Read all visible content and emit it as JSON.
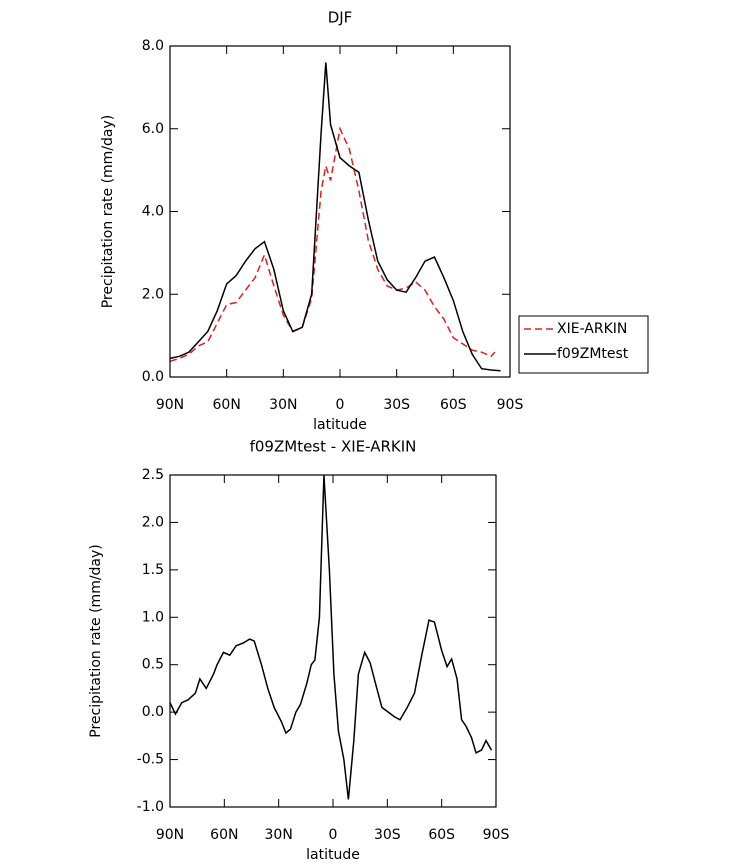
{
  "chart_data": [
    {
      "type": "line",
      "title": "DJF",
      "xlabel": "latitude",
      "ylabel": "Precipitation rate (mm/day)",
      "xlim": [
        90,
        -90
      ],
      "ylim": [
        0,
        8
      ],
      "xticks": [
        {
          "value": 90,
          "label": "90N"
        },
        {
          "value": 60,
          "label": "60N"
        },
        {
          "value": 30,
          "label": "30N"
        },
        0,
        {
          "value": -30,
          "label": "30S"
        },
        {
          "value": -60,
          "label": "60S"
        },
        {
          "value": -90,
          "label": "90S"
        }
      ],
      "yticks": [
        {
          "value": 0,
          "label": "0.0"
        },
        {
          "value": 2,
          "label": "2.0"
        },
        {
          "value": 4,
          "label": "4.0"
        },
        {
          "value": 6,
          "label": "6.0"
        },
        {
          "value": 8,
          "label": "8.0"
        }
      ],
      "legend": "right",
      "series": [
        {
          "name": "XIE-ARKIN",
          "color": "#e02020",
          "line_style": "dashed",
          "x": [
            90,
            85,
            80,
            75,
            70,
            65,
            60,
            55,
            50,
            45,
            40,
            35,
            30,
            25,
            20,
            15,
            10,
            7.5,
            5,
            0,
            -5,
            -10,
            -15,
            -20,
            -25,
            -30,
            -35,
            -40,
            -45,
            -50,
            -55,
            -60,
            -65,
            -70,
            -75,
            -80,
            -82
          ],
          "values": [
            0.38,
            0.45,
            0.55,
            0.75,
            0.85,
            1.3,
            1.75,
            1.8,
            2.1,
            2.4,
            2.95,
            2.2,
            1.5,
            1.1,
            1.2,
            1.9,
            4.5,
            5.1,
            4.75,
            6.0,
            5.5,
            4.5,
            3.3,
            2.6,
            2.2,
            2.1,
            2.15,
            2.3,
            2.1,
            1.7,
            1.4,
            0.95,
            0.8,
            0.65,
            0.6,
            0.5,
            0.6
          ]
        },
        {
          "name": "f09ZMtest",
          "color": "#000000",
          "line_style": "solid",
          "x": [
            90,
            85,
            80,
            75,
            70,
            65,
            60,
            55,
            50,
            45,
            40,
            35,
            30,
            25,
            20,
            15,
            10,
            7.5,
            5,
            0,
            -5,
            -10,
            -15,
            -20,
            -25,
            -30,
            -35,
            -40,
            -45,
            -50,
            -55,
            -60,
            -65,
            -70,
            -75,
            -80,
            -85
          ],
          "values": [
            0.45,
            0.5,
            0.6,
            0.85,
            1.1,
            1.6,
            2.25,
            2.45,
            2.8,
            3.1,
            3.27,
            2.6,
            1.6,
            1.1,
            1.2,
            2.0,
            5.9,
            7.6,
            6.1,
            5.3,
            5.1,
            4.95,
            3.8,
            2.8,
            2.35,
            2.1,
            2.05,
            2.4,
            2.8,
            2.9,
            2.4,
            1.85,
            1.1,
            0.55,
            0.2,
            0.17,
            0.15
          ]
        }
      ]
    },
    {
      "type": "line",
      "title": "f09ZMtest - XIE-ARKIN",
      "xlabel": "latitude",
      "ylabel": "Precipitation rate (mm/day)",
      "xlim": [
        90,
        -90
      ],
      "ylim": [
        -1,
        2.5
      ],
      "xticks": [
        {
          "value": 90,
          "label": "90N"
        },
        {
          "value": 60,
          "label": "60N"
        },
        {
          "value": 30,
          "label": "30N"
        },
        0,
        {
          "value": -30,
          "label": "30S"
        },
        {
          "value": -60,
          "label": "60S"
        },
        {
          "value": -90,
          "label": "90S"
        }
      ],
      "yticks": [
        {
          "value": -1,
          "label": "-1.0"
        },
        {
          "value": -0.5,
          "label": "-0.5"
        },
        {
          "value": 0,
          "label": "0.0"
        },
        0.5,
        {
          "value": 1,
          "label": "1.0"
        },
        1.5,
        {
          "value": 2,
          "label": "2.0"
        },
        2.5
      ],
      "series": [
        {
          "color": "#000000",
          "line_style": "solid",
          "x": [
            90,
            87,
            83.5,
            80,
            76,
            73.5,
            70,
            66,
            64,
            60.5,
            57,
            53.5,
            49.5,
            46,
            43.5,
            39.5,
            36,
            32.5,
            28.5,
            26,
            23.5,
            20.5,
            18,
            14.5,
            12,
            10,
            7.5,
            5,
            2,
            -0.5,
            -3,
            -6,
            -8.5,
            -11.5,
            -14,
            -17.5,
            -20.5,
            -23.5,
            -27,
            -30.5,
            -34,
            -37,
            -41,
            -45,
            -49,
            -53,
            -56,
            -60,
            -63,
            -65.5,
            -68.5,
            -71,
            -73.5,
            -76.5,
            -79,
            -82,
            -84.5,
            -87.5
          ],
          "values": [
            0.1,
            -0.02,
            0.1,
            0.13,
            0.2,
            0.35,
            0.25,
            0.4,
            0.5,
            0.63,
            0.6,
            0.7,
            0.73,
            0.77,
            0.75,
            0.5,
            0.25,
            0.05,
            -0.1,
            -0.22,
            -0.18,
            0.0,
            0.08,
            0.3,
            0.5,
            0.55,
            1.0,
            2.5,
            1.5,
            0.4,
            -0.2,
            -0.5,
            -0.92,
            -0.3,
            0.4,
            0.63,
            0.52,
            0.3,
            0.05,
            0.0,
            -0.05,
            -0.08,
            0.05,
            0.2,
            0.6,
            0.97,
            0.95,
            0.65,
            0.48,
            0.56,
            0.35,
            -0.08,
            -0.15,
            -0.27,
            -0.43,
            -0.4,
            -0.3,
            -0.4
          ]
        }
      ]
    }
  ]
}
